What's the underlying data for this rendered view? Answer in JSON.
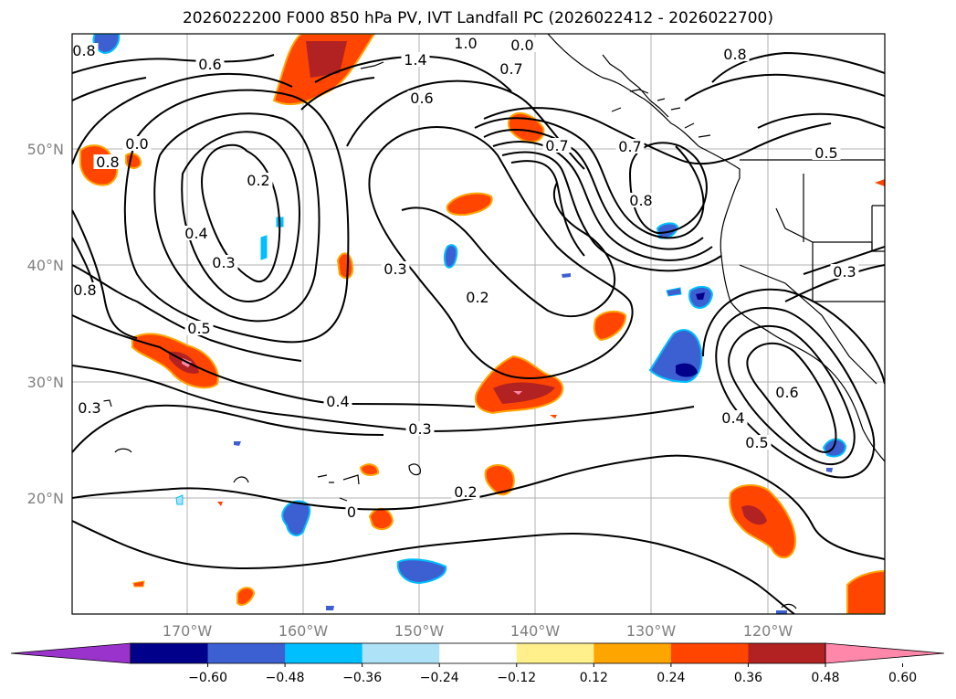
{
  "title": "2026022200 F000 850 hPa PV, IVT Landfall PC (2026022412 - 2026022700)",
  "lat_ticks": [
    "50°N",
    "40°N",
    "30°N",
    "20°N"
  ],
  "lon_ticks": [
    "170°W",
    "160°W",
    "150°W",
    "140°W",
    "130°W",
    "120°W"
  ],
  "colorbar": {
    "colors": [
      "#9933cc",
      "#00008b",
      "#3c5fd2",
      "#00bfff",
      "#aee3f7",
      "#ffffff",
      "#fff08c",
      "#ffa500",
      "#ff4500",
      "#b22222",
      "#ff88aa"
    ],
    "ticks": [
      "−0.60",
      "−0.48",
      "−0.36",
      "−0.24",
      "−0.12",
      "0.12",
      "0.24",
      "0.36",
      "0.48",
      "0.60"
    ]
  },
  "contour_labels": [
    {
      "text": "0.6",
      "pos": [
        230,
        73
      ]
    },
    {
      "text": "0.8",
      "pos": [
        92,
        58
      ]
    },
    {
      "text": "1.4",
      "pos": [
        455,
        68
      ]
    },
    {
      "text": "1.0",
      "pos": [
        510,
        50
      ]
    },
    {
      "text": "0.7",
      "pos": [
        560,
        78
      ]
    },
    {
      "text": "0.0",
      "pos": [
        572,
        52
      ]
    },
    {
      "text": "0.8",
      "pos": [
        805,
        62
      ]
    },
    {
      "text": "0.6",
      "pos": [
        462,
        110
      ]
    },
    {
      "text": "0.7",
      "pos": [
        610,
        162
      ]
    },
    {
      "text": "0.7",
      "pos": [
        690,
        163
      ]
    },
    {
      "text": "0.8",
      "pos": [
        702,
        222
      ]
    },
    {
      "text": "0.5",
      "pos": [
        905,
        170
      ]
    },
    {
      "text": "0.0",
      "pos": [
        150,
        160
      ]
    },
    {
      "text": "0.8",
      "pos": [
        118,
        180
      ]
    },
    {
      "text": "0.2",
      "pos": [
        283,
        200
      ]
    },
    {
      "text": "0.4",
      "pos": [
        215,
        258
      ]
    },
    {
      "text": "0.3",
      "pos": [
        245,
        290
      ]
    },
    {
      "text": "0.3",
      "pos": [
        433,
        297
      ]
    },
    {
      "text": "0.2",
      "pos": [
        523,
        328
      ]
    },
    {
      "text": "0.3",
      "pos": [
        925,
        300
      ]
    },
    {
      "text": "0.8",
      "pos": [
        93,
        320
      ]
    },
    {
      "text": "0.5",
      "pos": [
        218,
        362
      ]
    },
    {
      "text": "0.4",
      "pos": [
        370,
        442
      ]
    },
    {
      "text": "0.3",
      "pos": [
        98,
        449
      ]
    },
    {
      "text": "0.3",
      "pos": [
        460,
        472
      ]
    },
    {
      "text": "0.6",
      "pos": [
        862,
        432
      ]
    },
    {
      "text": "0.4",
      "pos": [
        803,
        460
      ]
    },
    {
      "text": "0.5",
      "pos": [
        829,
        487
      ]
    },
    {
      "text": "0.2",
      "pos": [
        510,
        541
      ]
    },
    {
      "text": "0",
      "pos": [
        385,
        563
      ]
    }
  ]
}
